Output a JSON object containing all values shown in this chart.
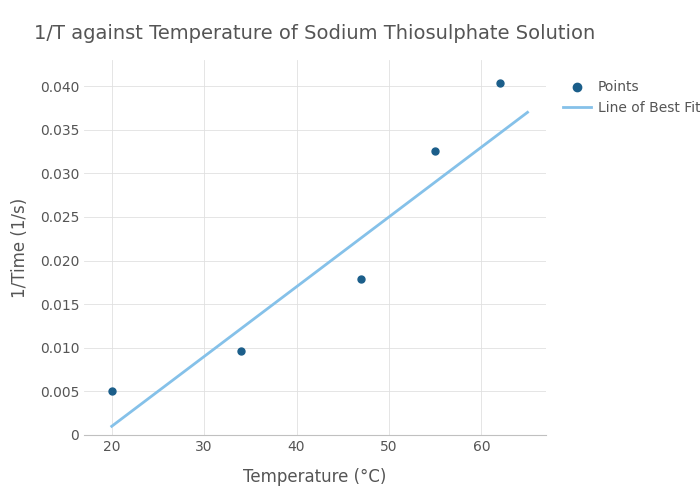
{
  "title": "1/T against Temperature of Sodium Thiosulphate Solution",
  "xlabel": "Temperature (°C)",
  "ylabel": "1/Time (1/s)",
  "points_x": [
    20,
    34,
    47,
    55,
    62
  ],
  "points_y": [
    0.005,
    0.0096,
    0.0179,
    0.0326,
    0.0404
  ],
  "point_color": "#1b5e8a",
  "line_color": "#85c1e9",
  "line_x1": 20,
  "line_y1": 0.001,
  "line_x2": 65,
  "line_y2": 0.037,
  "xlim": [
    17,
    67
  ],
  "ylim": [
    0,
    0.043
  ],
  "xticks": [
    20,
    30,
    40,
    50,
    60
  ],
  "yticks": [
    0,
    0.005,
    0.01,
    0.015,
    0.02,
    0.025,
    0.03,
    0.035,
    0.04
  ],
  "title_fontsize": 14,
  "label_fontsize": 12,
  "tick_fontsize": 10,
  "legend_labels": [
    "Points",
    "Line of Best Fit"
  ],
  "background_color": "#ffffff",
  "plot_bg_color": "#ffffff",
  "grid_color": "#e0e0e0",
  "point_size": 25,
  "line_width": 2.0,
  "spine_color": "#c0c0c0",
  "text_color": "#555555"
}
